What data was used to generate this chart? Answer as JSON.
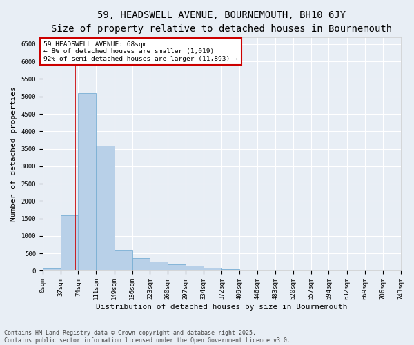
{
  "title_line1": "59, HEADSWELL AVENUE, BOURNEMOUTH, BH10 6JY",
  "title_line2": "Size of property relative to detached houses in Bournemouth",
  "xlabel": "Distribution of detached houses by size in Bournemouth",
  "ylabel": "Number of detached properties",
  "bar_color": "#b8d0e8",
  "bar_edge_color": "#7aafd4",
  "background_color": "#e8eef5",
  "grid_color": "#ffffff",
  "annotation_line_color": "#cc0000",
  "annotation_box_color": "#cc0000",
  "annotation_text": "59 HEADSWELL AVENUE: 68sqm\n← 8% of detached houses are smaller (1,019)\n92% of semi-detached houses are larger (11,893) →",
  "property_size": 68,
  "bins": [
    0,
    37,
    74,
    111,
    149,
    186,
    223,
    260,
    297,
    334,
    372,
    409,
    446,
    483,
    520,
    557,
    594,
    632,
    669,
    706,
    743
  ],
  "bar_heights": [
    70,
    1600,
    5100,
    3600,
    590,
    370,
    260,
    195,
    140,
    90,
    50,
    0,
    0,
    0,
    0,
    0,
    0,
    0,
    0,
    0
  ],
  "ylim": [
    0,
    6700
  ],
  "yticks": [
    0,
    500,
    1000,
    1500,
    2000,
    2500,
    3000,
    3500,
    4000,
    4500,
    5000,
    5500,
    6000,
    6500
  ],
  "footer_line1": "Contains HM Land Registry data © Crown copyright and database right 2025.",
  "footer_line2": "Contains public sector information licensed under the Open Government Licence v3.0.",
  "title_fontsize": 10,
  "subtitle_fontsize": 8.5,
  "axis_label_fontsize": 8,
  "tick_fontsize": 6.5,
  "footer_fontsize": 6
}
